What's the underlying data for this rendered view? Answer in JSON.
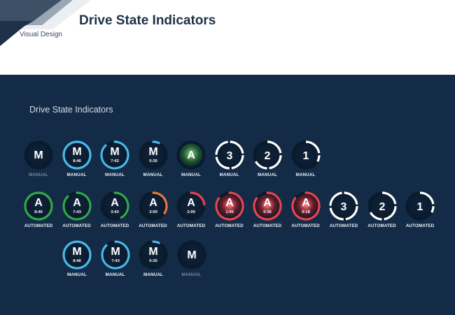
{
  "header": {
    "title": "Drive State Indicators",
    "subtitle": "Visual Design"
  },
  "panel": {
    "title": "Drive State Indicators"
  },
  "colors": {
    "background": "#132b47",
    "manual_blue": "#46b9ec",
    "automated_green": "#2fa84a",
    "warning_orange": "#e8763a",
    "alert_red": "#e8434c",
    "countdown_white": "#ffffff"
  },
  "rows": [
    [
      {
        "kind": "letter",
        "letter": "M",
        "time": "",
        "progress": 0,
        "color": "none",
        "label": "MANUAL",
        "dim": true
      },
      {
        "kind": "letter",
        "letter": "M",
        "time": "8:46",
        "progress": 1.0,
        "color": "manual_blue",
        "label": "MANUAL",
        "dim": false
      },
      {
        "kind": "letter",
        "letter": "M",
        "time": "7:43",
        "progress": 0.88,
        "color": "manual_blue",
        "label": "MANUAL",
        "dim": false
      },
      {
        "kind": "letter",
        "letter": "M",
        "time": "0:35",
        "progress": 0.07,
        "color": "manual_blue",
        "label": "MANUAL",
        "dim": false
      },
      {
        "kind": "letter",
        "letter": "A",
        "time": "",
        "progress": 0,
        "color": "none",
        "glow": "green",
        "label": "MANUAL",
        "dim": false
      },
      {
        "kind": "count",
        "letter": "3",
        "time": "",
        "progress": 1.0,
        "color": "countdown_white",
        "label": "MANUAL",
        "dim": false
      },
      {
        "kind": "count",
        "letter": "2",
        "time": "",
        "progress": 0.67,
        "color": "countdown_white",
        "label": "MANUAL",
        "dim": false
      },
      {
        "kind": "count",
        "letter": "1",
        "time": "",
        "progress": 0.33,
        "color": "countdown_white",
        "label": "MANUAL",
        "dim": false
      }
    ],
    [
      {
        "kind": "letter",
        "letter": "A",
        "time": "8:46",
        "progress": 1.0,
        "color": "automated_green",
        "label": "AUTOMATED",
        "dim": false
      },
      {
        "kind": "letter",
        "letter": "A",
        "time": "7:43",
        "progress": 0.88,
        "color": "automated_green",
        "label": "AUTOMATED",
        "dim": false
      },
      {
        "kind": "letter",
        "letter": "A",
        "time": "3:43",
        "progress": 0.42,
        "color": "automated_green",
        "label": "AUTOMATED",
        "dim": false
      },
      {
        "kind": "letter",
        "letter": "A",
        "time": "3:00",
        "progress": 0.34,
        "color": "warning_orange",
        "label": "AUTOMATED",
        "dim": false
      },
      {
        "kind": "letter",
        "letter": "A",
        "time": "2:00",
        "progress": 0.23,
        "color": "alert_red",
        "label": "AUTOMATED",
        "dim": false
      },
      {
        "kind": "letter",
        "letter": "A",
        "time": "1:00",
        "progress": 0.85,
        "color": "alert_red",
        "glow": "red",
        "label": "AUTOMATED",
        "dim": false
      },
      {
        "kind": "letter",
        "letter": "A",
        "time": "0:36",
        "progress": 0.85,
        "color": "alert_red",
        "glow": "red",
        "label": "AUTOMATED",
        "dim": false
      },
      {
        "kind": "letter",
        "letter": "A",
        "time": "0:18",
        "progress": 0.85,
        "color": "alert_red",
        "glow": "red",
        "label": "AUTOMATED",
        "dim": false
      },
      {
        "kind": "count",
        "letter": "3",
        "time": "",
        "progress": 1.0,
        "color": "countdown_white",
        "label": "AUTOMATED",
        "dim": false
      },
      {
        "kind": "count",
        "letter": "2",
        "time": "",
        "progress": 0.67,
        "color": "countdown_white",
        "label": "AUTOMATED",
        "dim": false
      },
      {
        "kind": "count",
        "letter": "1",
        "time": "",
        "progress": 0.33,
        "color": "countdown_white",
        "label": "AUTOMATED",
        "dim": false
      }
    ],
    [
      {
        "kind": "letter",
        "letter": "M",
        "time": "8:46",
        "progress": 1.0,
        "color": "manual_blue",
        "label": "MANUAL",
        "dim": false
      },
      {
        "kind": "letter",
        "letter": "M",
        "time": "7:43",
        "progress": 0.88,
        "color": "manual_blue",
        "label": "MANUAL",
        "dim": false
      },
      {
        "kind": "letter",
        "letter": "M",
        "time": "0:35",
        "progress": 0.07,
        "color": "manual_blue",
        "label": "MANUAL",
        "dim": false
      },
      {
        "kind": "letter",
        "letter": "M",
        "time": "",
        "progress": 0,
        "color": "none",
        "label": "MANUAL",
        "dim": true
      }
    ]
  ]
}
